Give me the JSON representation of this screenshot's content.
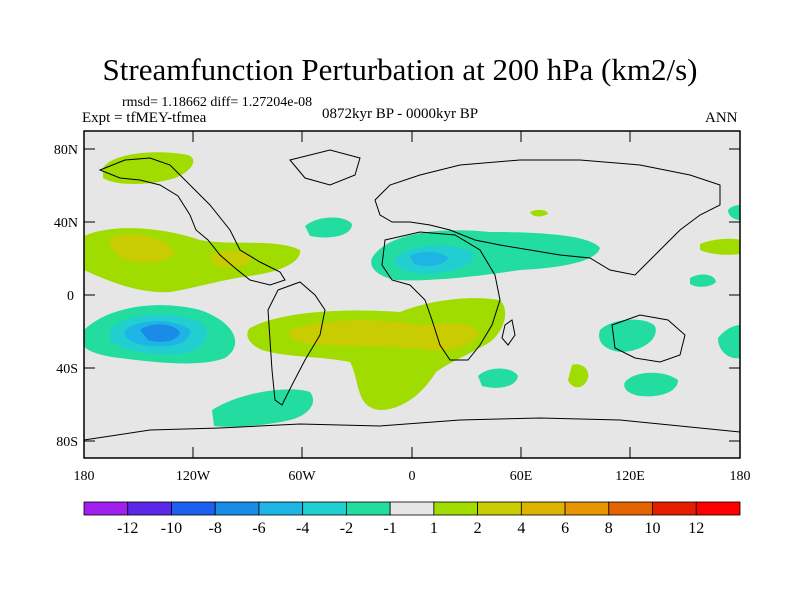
{
  "title": "Streamfunction Perturbation at 200 hPa (km2/s)",
  "stats": "rmsd= 1.18662 diff= 1.27204e-08",
  "experiment": "Expt = tfMEY-tfmea",
  "period": "0872kyr BP - 0000kyr BP",
  "season": "ANN",
  "lat_labels": [
    "80N",
    "40N",
    "0",
    "40S",
    "80S"
  ],
  "lon_labels": [
    "180",
    "120W",
    "60W",
    "0",
    "60E",
    "120E",
    "180"
  ],
  "colorbar": {
    "labels": [
      "-12",
      "-10",
      "-8",
      "-6",
      "-4",
      "-2",
      "-1",
      "1",
      "2",
      "4",
      "6",
      "8",
      "10",
      "12"
    ],
    "colors": [
      "#a020f0",
      "#5a28e6",
      "#1e5ff0",
      "#1a8ce8",
      "#1fb4e6",
      "#21cfd0",
      "#23dca0",
      "#e6e6e6",
      "#a0dc00",
      "#c8cc00",
      "#dcb400",
      "#e69600",
      "#e66400",
      "#e61e00",
      "#ff0000"
    ]
  },
  "colors": {
    "background": "#e6e6e6",
    "pos1": "#a0dc00",
    "pos2": "#c8cc00",
    "neg1": "#23dca0",
    "neg2": "#21cfd0",
    "neg3": "#1fb4e6",
    "neg4": "#1a8ce8"
  }
}
